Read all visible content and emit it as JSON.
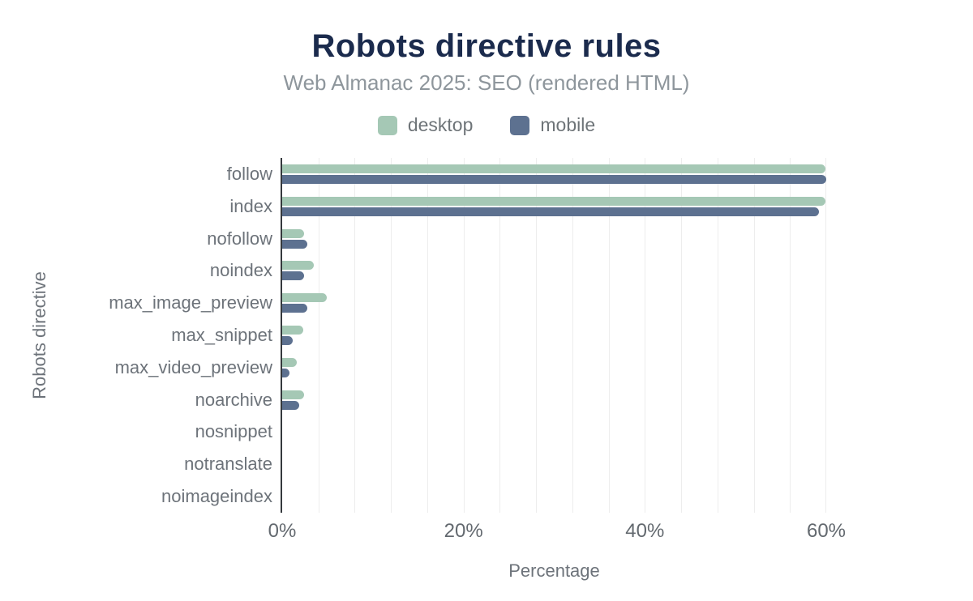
{
  "header": {
    "title": "Robots directive rules",
    "subtitle": "Web Almanac 2025: SEO (rendered HTML)"
  },
  "chart_data": {
    "type": "bar",
    "orientation": "horizontal",
    "title": "Robots directive rules",
    "subtitle": "Web Almanac 2025: SEO (rendered HTML)",
    "xlabel": "Percentage",
    "ylabel": "Robots directive",
    "value_unit": "%",
    "categories": [
      "follow",
      "index",
      "nofollow",
      "noindex",
      "max_image_preview",
      "max_snippet",
      "max_video_preview",
      "noarchive",
      "nosnippet",
      "notranslate",
      "noimageindex"
    ],
    "series": [
      {
        "name": "desktop",
        "color": "#a5c8b5",
        "values": [
          59.9,
          59.9,
          2.4,
          3.5,
          4.9,
          2.3,
          1.6,
          2.4,
          0,
          0,
          0
        ]
      },
      {
        "name": "mobile",
        "color": "#5d7190",
        "values": [
          60.0,
          59.2,
          2.8,
          2.4,
          2.8,
          1.2,
          0.8,
          1.9,
          0,
          0,
          0
        ]
      }
    ],
    "xlim": [
      0,
      60
    ],
    "x_ticks": [
      {
        "value": 0,
        "label": "0%"
      },
      {
        "value": 20,
        "label": "20%"
      },
      {
        "value": 40,
        "label": "40%"
      },
      {
        "value": 60,
        "label": "60%"
      }
    ],
    "grid": {
      "show": true,
      "minor_step_pct": 4,
      "horizontal_lines": false
    },
    "legend_position": "top"
  },
  "colors": {
    "title": "#1b2b4d",
    "subtitle": "#8e969c",
    "axis_text": "#6d737a",
    "tick_text": "#63696f",
    "gridline": "#ededed",
    "axis_line": "#35393d"
  }
}
